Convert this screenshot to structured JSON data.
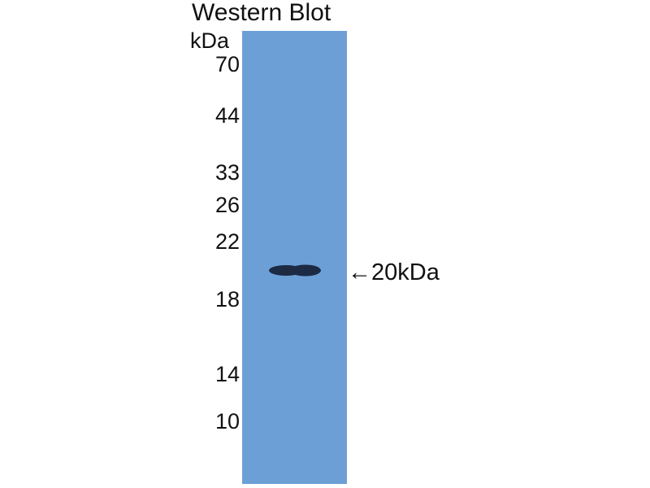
{
  "title": "Western Blot",
  "unit": "kDa",
  "markers": [
    "70",
    "44",
    "33",
    "26",
    "22",
    "18",
    "14",
    "10"
  ],
  "band": {
    "arrow": "←",
    "label": "20kDa"
  },
  "colors": {
    "membrane": "#6c9fd6",
    "band": "#1d2a44"
  }
}
